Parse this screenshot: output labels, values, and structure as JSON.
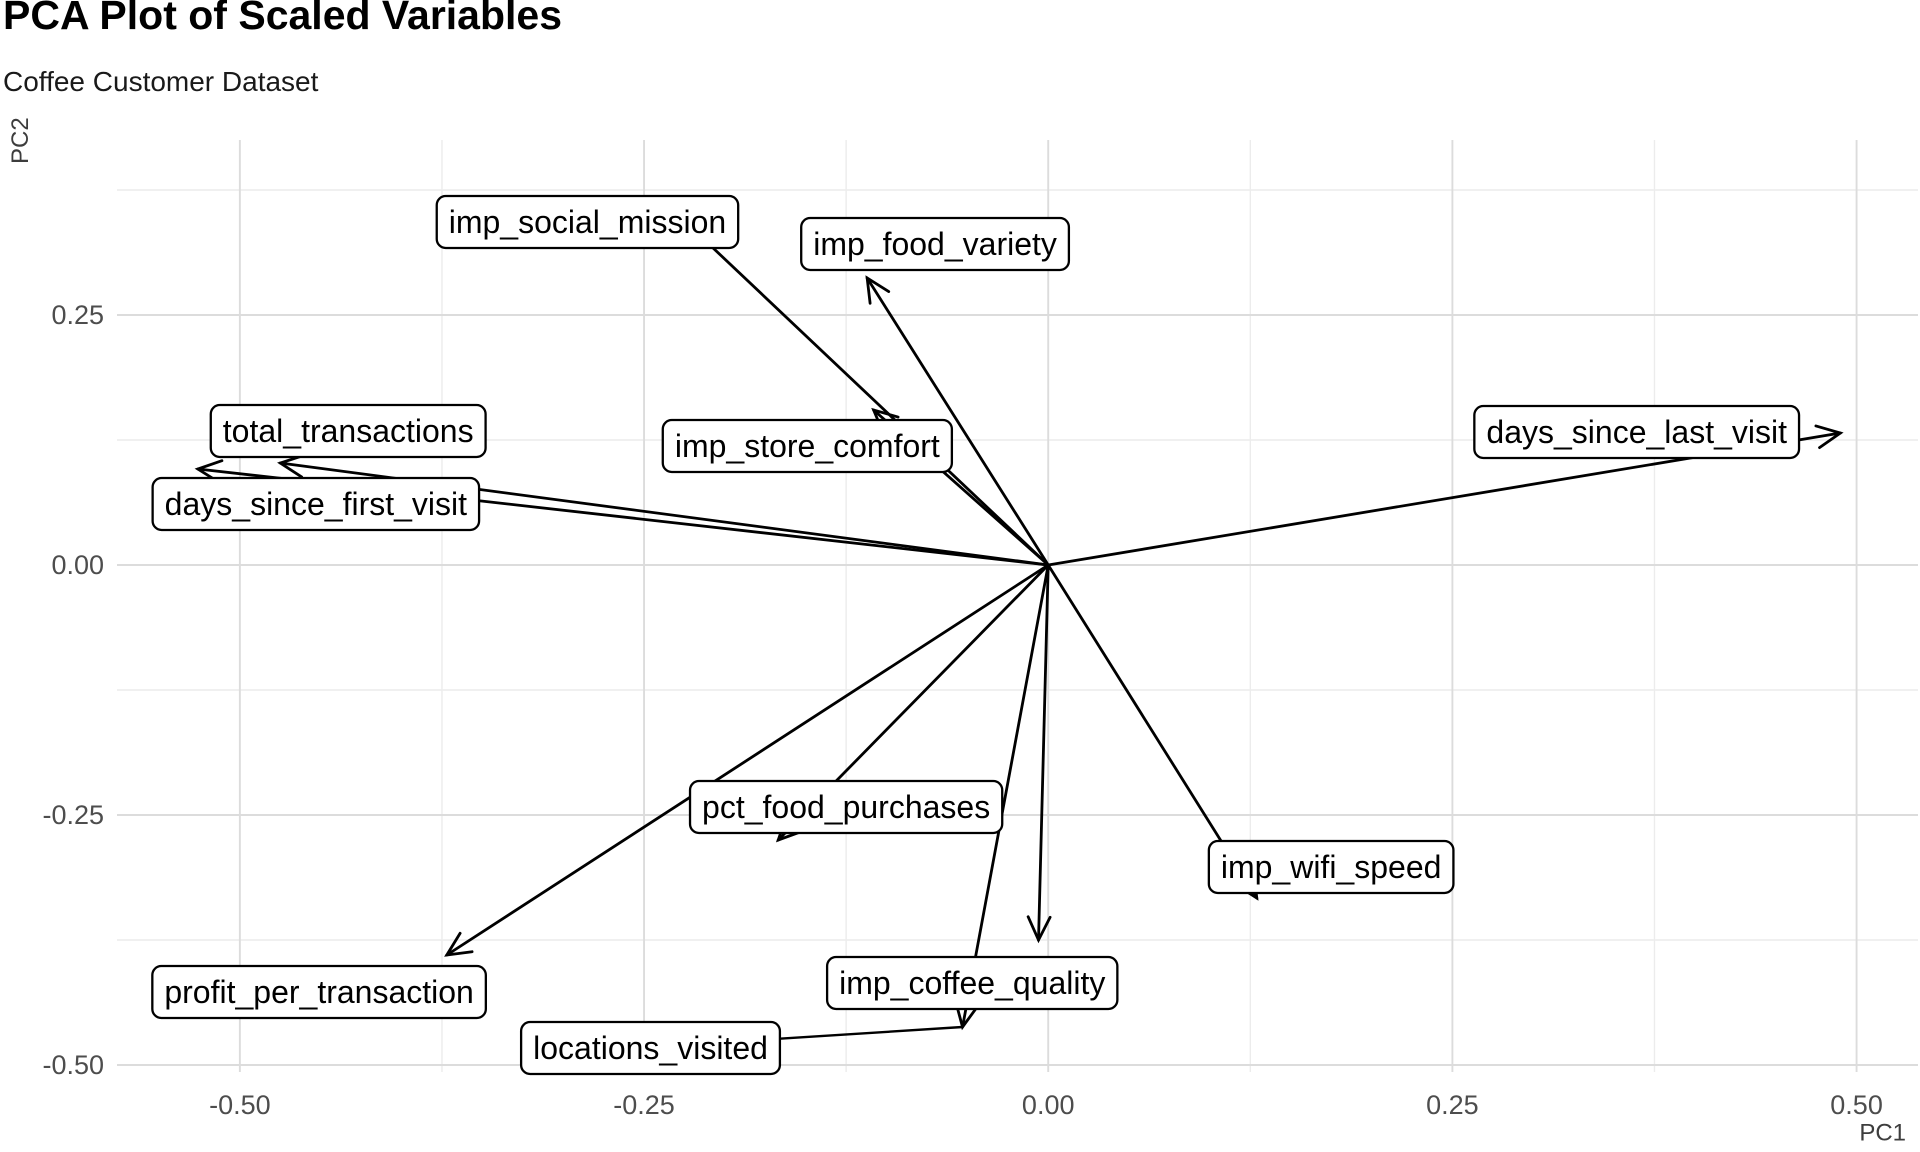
{
  "header": {
    "title": "PCA Plot of Scaled Variables",
    "subtitle": "Coffee Customer Dataset"
  },
  "chart_data": {
    "type": "scatter",
    "variant": "pca-biplot-variable-loadings",
    "title": "PCA Plot of Scaled Variables",
    "subtitle": "Coffee Customer Dataset",
    "xlabel": "PC1",
    "ylabel": "PC2",
    "xlim": [
      -0.576,
      0.538
    ],
    "ylim": [
      -0.507,
      0.425
    ],
    "x_ticks": {
      "values": [
        -0.5,
        -0.25,
        0.0,
        0.25,
        0.5
      ],
      "labels": [
        "-0.50",
        "-0.25",
        "0.00",
        "0.25",
        "0.50"
      ]
    },
    "y_ticks": {
      "values": [
        0.25,
        0.0,
        -0.25,
        -0.5
      ],
      "labels": [
        "0.25",
        "0.00",
        "-0.25",
        "-0.50"
      ]
    },
    "x_minor_gridlines": [
      -0.375,
      -0.125,
      0.125,
      0.375
    ],
    "y_minor_gridlines": [
      0.375,
      0.125,
      -0.125,
      -0.375
    ],
    "grid": true,
    "legend": false,
    "arrow_origin": [
      0,
      0
    ],
    "loadings": [
      {
        "name": "imp_social_mission",
        "pc1": -0.24,
        "pc2": 0.367,
        "label_pc1": -0.285,
        "label_pc2": 0.344,
        "leader_line": false
      },
      {
        "name": "imp_food_variety",
        "pc1": -0.112,
        "pc2": 0.287,
        "label_pc1": -0.07,
        "label_pc2": 0.322,
        "leader_line": false
      },
      {
        "name": "imp_store_comfort",
        "pc1": -0.108,
        "pc2": 0.155,
        "label_pc1": -0.149,
        "label_pc2": 0.12,
        "leader_line": false
      },
      {
        "name": "total_transactions",
        "pc1": -0.475,
        "pc2": 0.102,
        "label_pc1": -0.433,
        "label_pc2": 0.135,
        "leader_line": false
      },
      {
        "name": "days_since_first_visit",
        "pc1": -0.526,
        "pc2": 0.096,
        "label_pc1": -0.453,
        "label_pc2": 0.062,
        "leader_line": false
      },
      {
        "name": "days_since_last_visit",
        "pc1": 0.49,
        "pc2": 0.132,
        "label_pc1": 0.364,
        "label_pc2": 0.134,
        "leader_line": false
      },
      {
        "name": "pct_food_purchases",
        "pc1": -0.167,
        "pc2": -0.275,
        "label_pc1": -0.125,
        "label_pc2": -0.241,
        "leader_line": false
      },
      {
        "name": "imp_wifi_speed",
        "pc1": 0.129,
        "pc2": -0.333,
        "label_pc1": 0.175,
        "label_pc2": -0.301,
        "leader_line": false
      },
      {
        "name": "profit_per_transaction",
        "pc1": -0.372,
        "pc2": -0.39,
        "label_pc1": -0.451,
        "label_pc2": -0.426,
        "leader_line": false
      },
      {
        "name": "imp_coffee_quality",
        "pc1": -0.006,
        "pc2": -0.375,
        "label_pc1": -0.047,
        "label_pc2": -0.417,
        "leader_line": false
      },
      {
        "name": "locations_visited",
        "pc1": -0.053,
        "pc2": -0.462,
        "label_pc1": -0.246,
        "label_pc2": -0.482,
        "leader_line": true
      }
    ]
  },
  "style": {
    "background": "#ffffff",
    "arrow_color": "#000000",
    "grid_major_color": "#dcdcdc",
    "grid_minor_color": "#ececec",
    "tick_label_color": "#4d4d4d",
    "axis_title_color": "#3d3d3d",
    "label_box_fill": "#ffffff",
    "label_box_border": "#000000",
    "label_text_color": "#000000"
  }
}
